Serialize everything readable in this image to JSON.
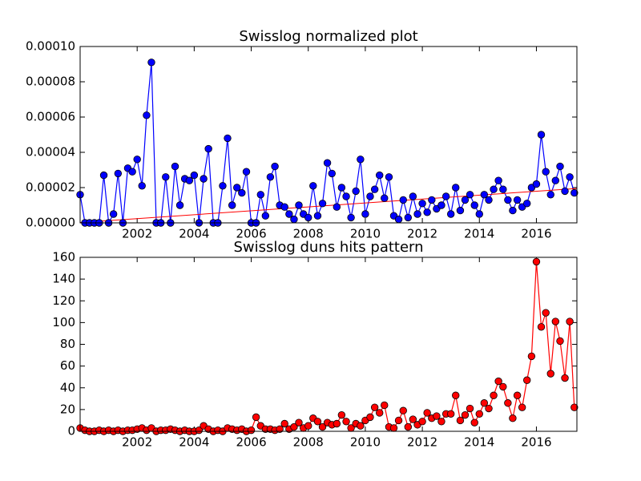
{
  "chart_data": [
    {
      "type": "line",
      "title": "Swisslog normalized plot",
      "x": [
        2000,
        2000.17,
        2000.33,
        2000.5,
        2000.67,
        2000.83,
        2001,
        2001.17,
        2001.33,
        2001.5,
        2001.67,
        2001.83,
        2002,
        2002.17,
        2002.33,
        2002.5,
        2002.67,
        2002.83,
        2003,
        2003.17,
        2003.33,
        2003.5,
        2003.67,
        2003.83,
        2004,
        2004.17,
        2004.33,
        2004.5,
        2004.67,
        2004.83,
        2005,
        2005.17,
        2005.33,
        2005.5,
        2005.67,
        2005.83,
        2006,
        2006.17,
        2006.33,
        2006.5,
        2006.67,
        2006.83,
        2007,
        2007.17,
        2007.33,
        2007.5,
        2007.67,
        2007.83,
        2008,
        2008.17,
        2008.33,
        2008.5,
        2008.67,
        2008.83,
        2009,
        2009.17,
        2009.33,
        2009.5,
        2009.67,
        2009.83,
        2010,
        2010.17,
        2010.33,
        2010.5,
        2010.67,
        2010.83,
        2011,
        2011.17,
        2011.33,
        2011.5,
        2011.67,
        2011.83,
        2012,
        2012.17,
        2012.33,
        2012.5,
        2012.67,
        2012.83,
        2013,
        2013.17,
        2013.33,
        2013.5,
        2013.67,
        2013.83,
        2014,
        2014.17,
        2014.33,
        2014.5,
        2014.67,
        2014.83,
        2015,
        2015.17,
        2015.33,
        2015.5,
        2015.67,
        2015.83,
        2016,
        2016.17,
        2016.33,
        2016.5,
        2016.67,
        2016.83,
        2017,
        2017.17,
        2017.33
      ],
      "xlim": [
        2000,
        2017.42
      ],
      "xticks": [
        2002,
        2004,
        2006,
        2008,
        2010,
        2012,
        2014,
        2016
      ],
      "ylim": [
        0,
        0.0001
      ],
      "yticks": [
        {
          "value": 0,
          "label": "0.00000"
        },
        {
          "value": 2e-05,
          "label": "0.00002"
        },
        {
          "value": 4e-05,
          "label": "0.00004"
        },
        {
          "value": 6e-05,
          "label": "0.00006"
        },
        {
          "value": 8e-05,
          "label": "0.00008"
        },
        {
          "value": 0.0001,
          "label": "0.00010"
        }
      ],
      "series": [
        {
          "color": "#0000ff",
          "values": [
            1.6e-05,
            0,
            0,
            0,
            0,
            2.7e-05,
            0,
            5e-06,
            2.8e-05,
            0,
            3.1e-05,
            2.9e-05,
            3.6e-05,
            2.1e-05,
            6.1e-05,
            9.1e-05,
            0,
            0,
            2.6e-05,
            0,
            3.2e-05,
            1e-05,
            2.5e-05,
            2.4e-05,
            2.7e-05,
            0,
            2.5e-05,
            4.2e-05,
            0,
            0,
            2.1e-05,
            4.8e-05,
            1e-05,
            2e-05,
            1.7e-05,
            2.9e-05,
            0,
            0,
            1.6e-05,
            4e-06,
            2.6e-05,
            3.2e-05,
            1e-05,
            9e-06,
            5e-06,
            2e-06,
            1e-05,
            5e-06,
            3e-06,
            2.1e-05,
            4e-06,
            1.1e-05,
            3.4e-05,
            2.8e-05,
            9e-06,
            2e-05,
            1.5e-05,
            3e-06,
            1.8e-05,
            3.6e-05,
            5e-06,
            1.5e-05,
            1.9e-05,
            2.7e-05,
            1.4e-05,
            2.6e-05,
            4e-06,
            2e-06,
            1.3e-05,
            3e-06,
            1.5e-05,
            5e-06,
            1.1e-05,
            6e-06,
            1.3e-05,
            8e-06,
            1e-05,
            1.5e-05,
            5e-06,
            2e-05,
            7e-06,
            1.3e-05,
            1.6e-05,
            1e-05,
            5e-06,
            1.6e-05,
            1.3e-05,
            1.9e-05,
            2.4e-05,
            1.9e-05,
            1.3e-05,
            7e-06,
            1.3e-05,
            9e-06,
            1.1e-05,
            2e-05,
            2.2e-05,
            5e-05,
            2.9e-05,
            1.6e-05,
            2.4e-05,
            3.2e-05,
            1.8e-05,
            2.6e-05,
            1.7e-05
          ]
        }
      ],
      "trend": {
        "color": "#ff0000",
        "x": [
          2000,
          2017.42
        ],
        "values": [
          2e-07,
          1.95e-05
        ]
      }
    },
    {
      "type": "line",
      "title": "Swisslog duns hits pattern",
      "x": [
        2000,
        2000.17,
        2000.33,
        2000.5,
        2000.67,
        2000.83,
        2001,
        2001.17,
        2001.33,
        2001.5,
        2001.67,
        2001.83,
        2002,
        2002.17,
        2002.33,
        2002.5,
        2002.67,
        2002.83,
        2003,
        2003.17,
        2003.33,
        2003.5,
        2003.67,
        2003.83,
        2004,
        2004.17,
        2004.33,
        2004.5,
        2004.67,
        2004.83,
        2005,
        2005.17,
        2005.33,
        2005.5,
        2005.67,
        2005.83,
        2006,
        2006.17,
        2006.33,
        2006.5,
        2006.67,
        2006.83,
        2007,
        2007.17,
        2007.33,
        2007.5,
        2007.67,
        2007.83,
        2008,
        2008.17,
        2008.33,
        2008.5,
        2008.67,
        2008.83,
        2009,
        2009.17,
        2009.33,
        2009.5,
        2009.67,
        2009.83,
        2010,
        2010.17,
        2010.33,
        2010.5,
        2010.67,
        2010.83,
        2011,
        2011.17,
        2011.33,
        2011.5,
        2011.67,
        2011.83,
        2012,
        2012.17,
        2012.33,
        2012.5,
        2012.67,
        2012.83,
        2013,
        2013.17,
        2013.33,
        2013.5,
        2013.67,
        2013.83,
        2014,
        2014.17,
        2014.33,
        2014.5,
        2014.67,
        2014.83,
        2015,
        2015.17,
        2015.33,
        2015.5,
        2015.67,
        2015.83,
        2016,
        2016.17,
        2016.33,
        2016.5,
        2016.67,
        2016.83,
        2017,
        2017.17,
        2017.33
      ],
      "xlim": [
        2000,
        2017.42
      ],
      "xticks": [
        2002,
        2004,
        2006,
        2008,
        2010,
        2012,
        2014,
        2016
      ],
      "ylim": [
        0,
        160
      ],
      "yticks": [
        0,
        20,
        40,
        60,
        80,
        100,
        120,
        140,
        160
      ],
      "series": [
        {
          "color": "#ff0000",
          "values": [
            3,
            1,
            0,
            0,
            1,
            0,
            1,
            0,
            1,
            0,
            1,
            1,
            2,
            3,
            1,
            3,
            0,
            1,
            1,
            2,
            1,
            0,
            1,
            0,
            0,
            1,
            5,
            2,
            0,
            1,
            0,
            3,
            2,
            1,
            2,
            0,
            1,
            13,
            5,
            2,
            2,
            1,
            2,
            7,
            2,
            4,
            8,
            3,
            5,
            12,
            9,
            4,
            8,
            6,
            7,
            15,
            9,
            3,
            7,
            5,
            10,
            13,
            22,
            17,
            24,
            4,
            3,
            10,
            19,
            4,
            11,
            6,
            9,
            17,
            12,
            14,
            9,
            16,
            16,
            33,
            10,
            15,
            21,
            8,
            16,
            26,
            21,
            33,
            46,
            41,
            26,
            12,
            33,
            22,
            47,
            69,
            156,
            96,
            109,
            53,
            101,
            83,
            49,
            101,
            22
          ]
        }
      ]
    }
  ]
}
